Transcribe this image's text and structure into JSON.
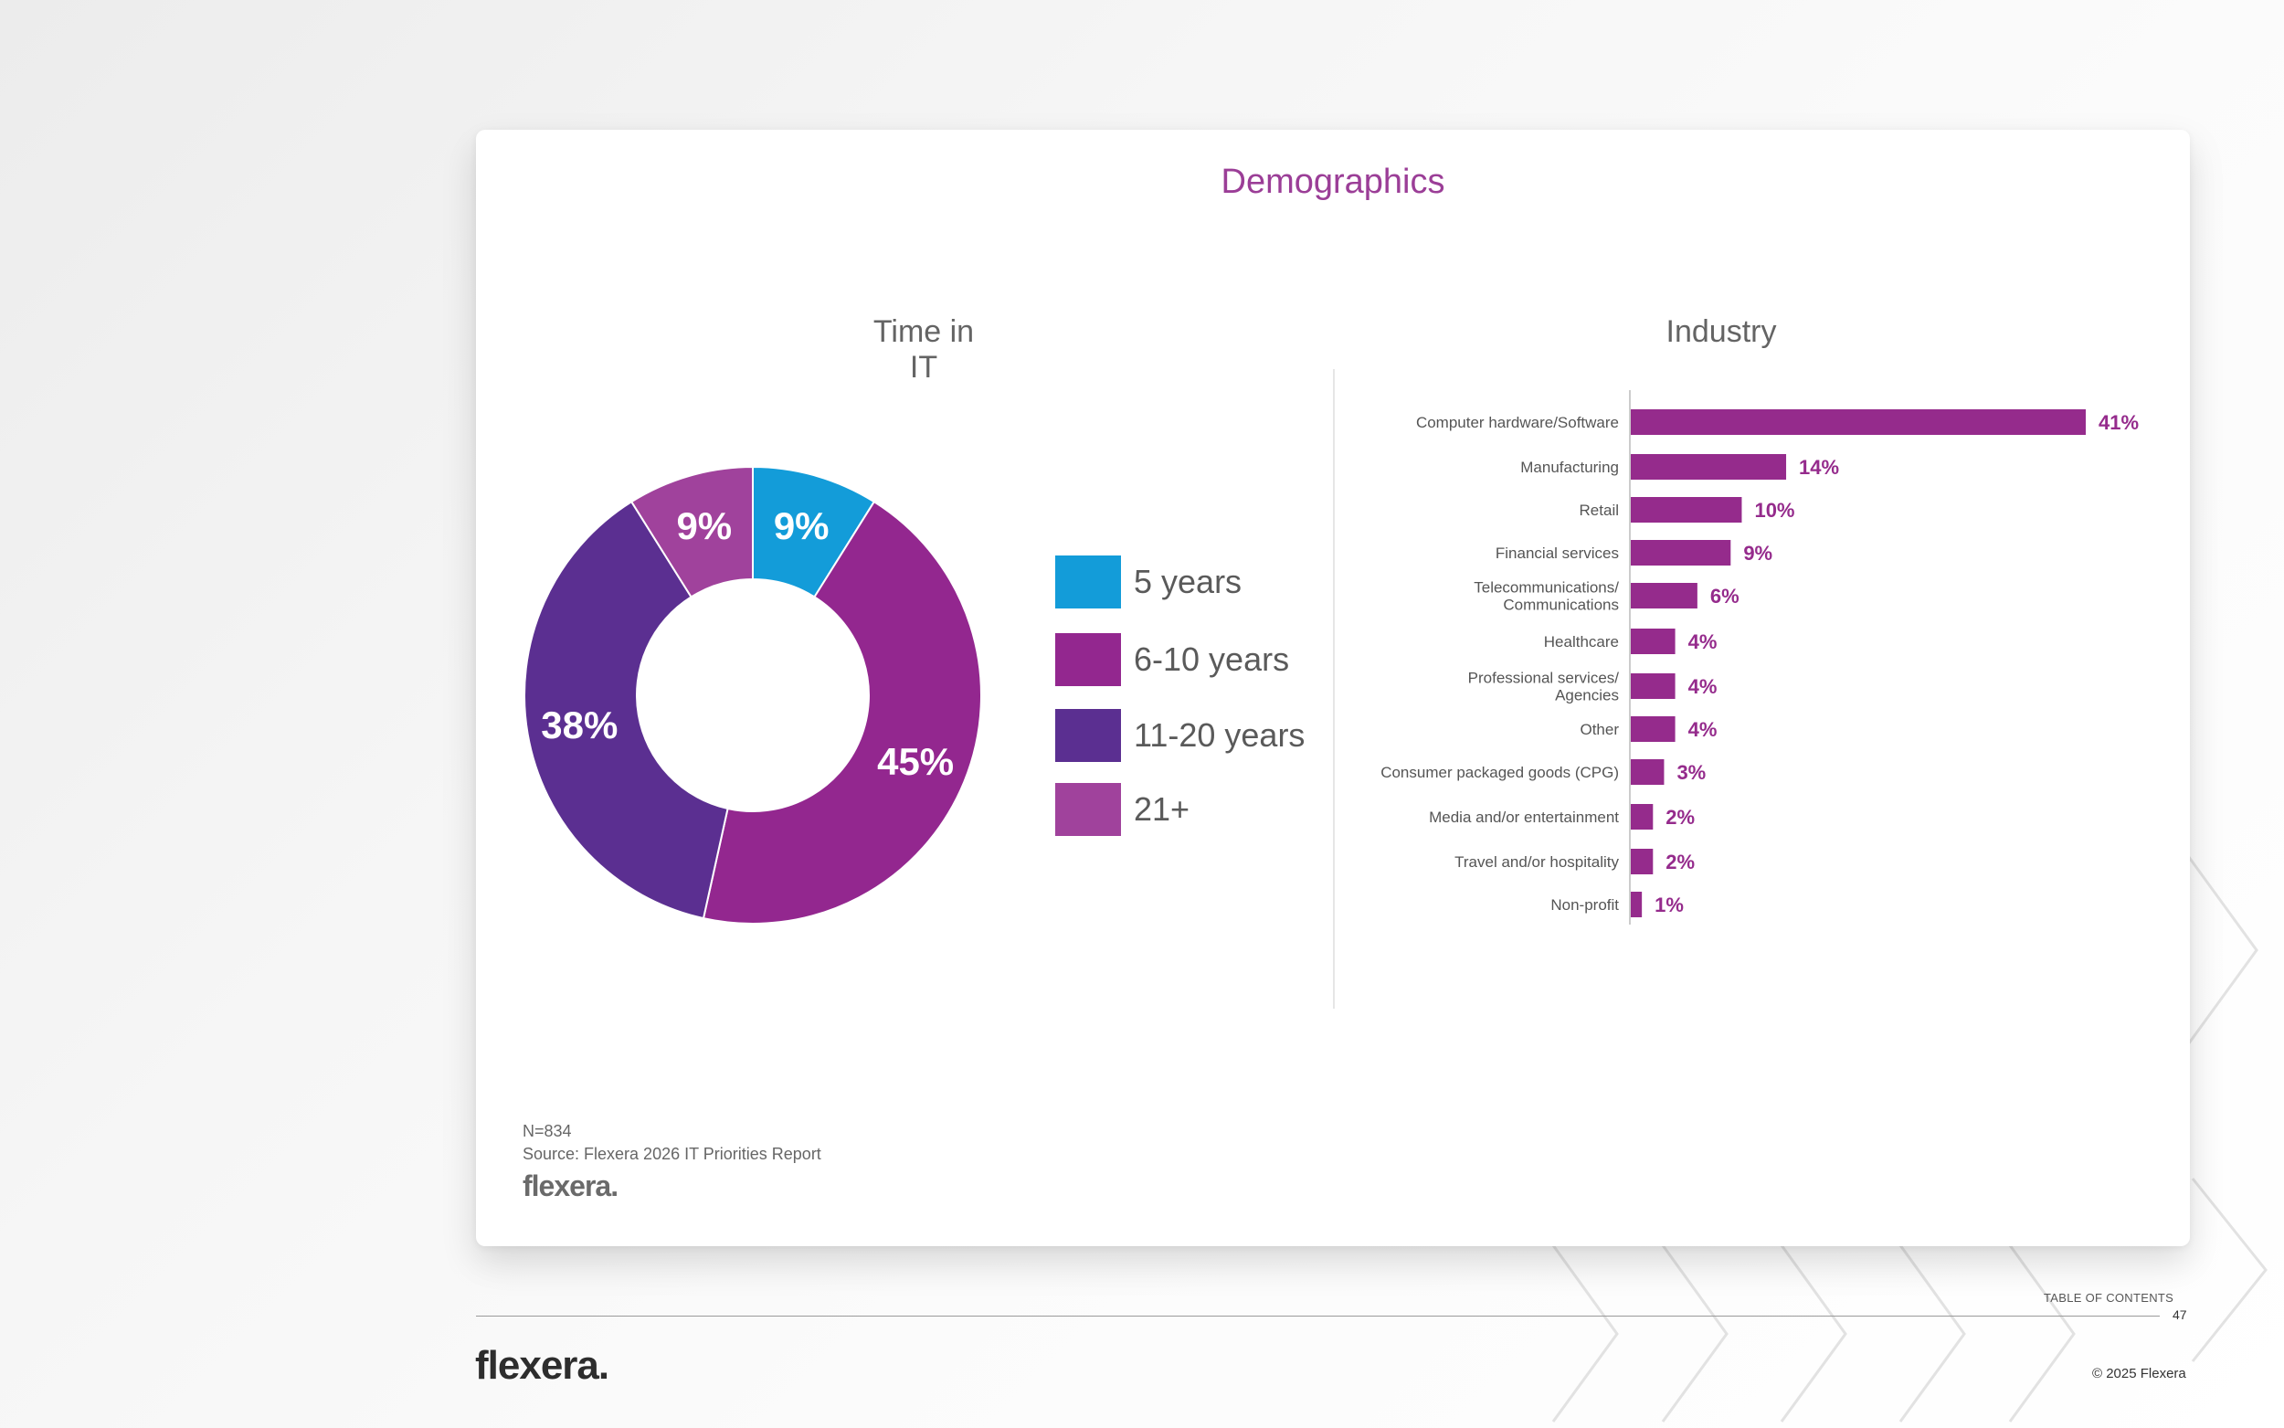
{
  "card": {
    "title": "Demographics",
    "footnote_n": "N=834",
    "footnote_source": "Source: Flexera 2026 IT Priorities Report",
    "logo": "flexera."
  },
  "footer": {
    "toc": "TABLE OF CONTENTS",
    "page_number": "47",
    "logo": "flexera.",
    "copyright": "© 2025 Flexera"
  },
  "colors": {
    "accent": "#9b3e97",
    "bar": "#952b8c",
    "five_years": "#139cd9",
    "six_ten": "#93278f",
    "eleven_twenty": "#5b2f91",
    "twenty_one_plus": "#a0429c"
  },
  "chart_data": [
    {
      "type": "pie",
      "title": "Time in IT",
      "donut": true,
      "legend_position": "right",
      "slices": [
        {
          "label": "5 years",
          "value": 9,
          "display": "9%",
          "color": "#139cd9"
        },
        {
          "label": "6-10 years",
          "value": 45,
          "display": "45%",
          "color": "#93278f"
        },
        {
          "label": "11-20 years",
          "value": 38,
          "display": "38%",
          "color": "#5b2f91"
        },
        {
          "label": "21+",
          "value": 9,
          "display": "9%",
          "color": "#a0429c"
        }
      ]
    },
    {
      "type": "bar",
      "orientation": "horizontal",
      "title": "Industry",
      "xlim": [
        0,
        45
      ],
      "categories": [
        [
          "Computer hardware/Software"
        ],
        [
          "Manufacturing"
        ],
        [
          "Retail"
        ],
        [
          "Financial services"
        ],
        [
          "Telecommunications/",
          "Communications"
        ],
        [
          "Healthcare"
        ],
        [
          "Professional services/",
          "Agencies"
        ],
        [
          "Other"
        ],
        [
          "Consumer packaged goods (CPG)"
        ],
        [
          "Media and/or entertainment"
        ],
        [
          "Travel and/or hospitality"
        ],
        [
          "Non-profit"
        ]
      ],
      "values": [
        41,
        14,
        10,
        9,
        6,
        4,
        4,
        4,
        3,
        2,
        2,
        1
      ],
      "value_labels": [
        "41%",
        "14%",
        "10%",
        "9%",
        "6%",
        "4%",
        "4%",
        "4%",
        "3%",
        "2%",
        "2%",
        "1%"
      ]
    }
  ]
}
